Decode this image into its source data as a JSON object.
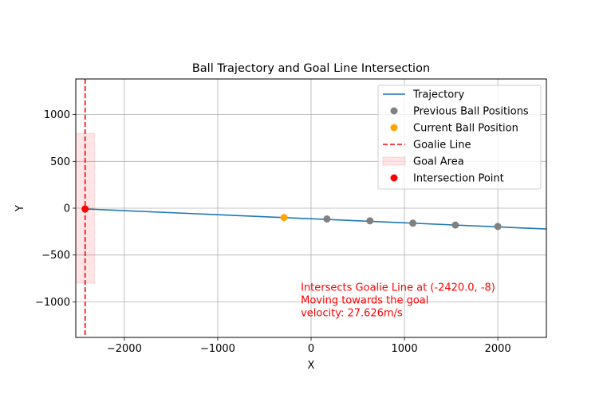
{
  "chart_data": {
    "type": "scatter",
    "title": "Ball Trajectory and Goal Line Intersection",
    "xlabel": "X",
    "ylabel": "Y",
    "xlim": [
      -2520,
      2520
    ],
    "ylim": [
      -1380,
      1380
    ],
    "xticks": [
      -2000,
      -1000,
      0,
      1000,
      2000
    ],
    "xtick_labels": [
      "−2000",
      "−1000",
      "0",
      "1000",
      "2000"
    ],
    "yticks": [
      -1000,
      -500,
      0,
      500,
      1000
    ],
    "ytick_labels": [
      "−1000",
      "−500",
      "0",
      "500",
      "1000"
    ],
    "grid": true,
    "legend_position": "top-right",
    "series": [
      {
        "name": "Trajectory",
        "kind": "line",
        "color": "#1f77b4",
        "points": [
          [
            -2420,
            -8
          ],
          [
            2520,
            -222
          ]
        ]
      },
      {
        "name": "Previous Ball Positions",
        "kind": "scatter",
        "color": "#808080",
        "points": [
          [
            170,
            -115
          ],
          [
            630,
            -135
          ],
          [
            1090,
            -160
          ],
          [
            1545,
            -180
          ],
          [
            2000,
            -195
          ]
        ]
      },
      {
        "name": "Current Ball Position",
        "kind": "scatter",
        "color": "#ffa500",
        "points": [
          [
            -290,
            -100
          ]
        ]
      },
      {
        "name": "Goalie Line",
        "kind": "vline",
        "color": "#ff0000",
        "x": -2420
      },
      {
        "name": "Goal Area",
        "kind": "rect",
        "color": "#ff0000",
        "alpha": 0.1,
        "x0": -2520,
        "x1": -2320,
        "y0": -800,
        "y1": 800
      },
      {
        "name": "Intersection Point",
        "kind": "scatter",
        "color": "#ff0000",
        "points": [
          [
            -2420,
            -8
          ]
        ]
      }
    ],
    "annotation": {
      "color": "#ff0000",
      "lines": [
        "Intersects Goalie Line at (-2420.0, -8)",
        "Moving towards the goal",
        "velocity: 27.626m/s"
      ]
    }
  }
}
